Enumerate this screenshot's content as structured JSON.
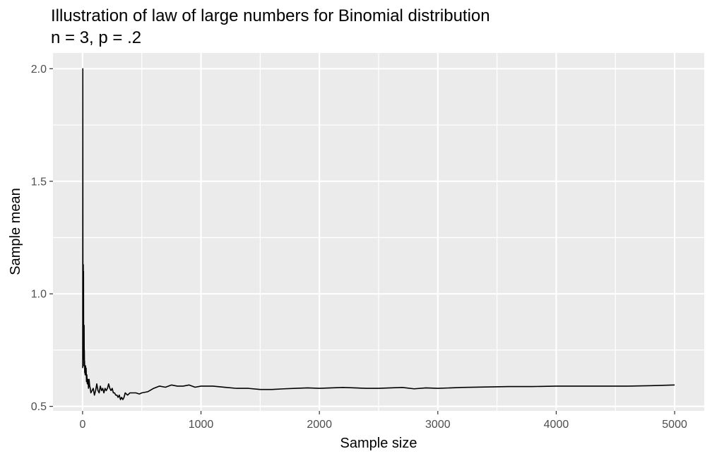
{
  "chart_data": {
    "type": "line",
    "title": "Illustration of law of large numbers for Binomial distribution",
    "subtitle": "n = 3, p = .2",
    "xlabel": "Sample size",
    "ylabel": "Sample mean",
    "xlim": [
      -250,
      5250
    ],
    "ylim": [
      0.48,
      2.07
    ],
    "x_ticks": [
      0,
      1000,
      2000,
      3000,
      4000,
      5000
    ],
    "x_tick_labels": [
      "0",
      "1000",
      "2000",
      "3000",
      "4000",
      "5000"
    ],
    "y_ticks": [
      0.5,
      1.0,
      1.5,
      2.0
    ],
    "y_tick_labels": [
      "0.5",
      "1.0",
      "1.5",
      "2.0"
    ],
    "x_minor_ticks": [
      500,
      1500,
      2500,
      3500,
      4500
    ],
    "y_minor_ticks": [
      0.75,
      1.25,
      1.75
    ],
    "grid": true,
    "panel_background": "#ebebeb",
    "grid_color": "#ffffff",
    "line_color": "#000000",
    "series": [
      {
        "x": [
          1,
          2,
          3,
          4,
          5,
          6,
          7,
          8,
          9,
          10,
          11,
          12,
          13,
          14,
          15,
          16,
          17,
          18,
          20,
          22,
          25,
          28,
          30,
          33,
          36,
          40,
          45,
          50,
          55,
          60,
          65,
          70,
          80,
          90,
          100,
          110,
          120,
          130,
          140,
          150,
          160,
          170,
          180,
          190,
          200,
          210,
          220,
          230,
          240,
          250,
          260,
          270,
          280,
          290,
          300,
          310,
          320,
          330,
          340,
          350,
          360,
          380,
          400,
          420,
          450,
          480,
          500,
          550,
          600,
          650,
          700,
          750,
          800,
          850,
          900,
          950,
          1000,
          1100,
          1200,
          1300,
          1400,
          1500,
          1600,
          1700,
          1800,
          1900,
          2000,
          2100,
          2200,
          2300,
          2400,
          2500,
          2600,
          2700,
          2800,
          2900,
          3000,
          3200,
          3400,
          3600,
          3800,
          4000,
          4200,
          4400,
          4600,
          4800,
          5000
        ],
        "values": [
          0.67,
          2.0,
          1.0,
          0.75,
          0.8,
          1.13,
          0.71,
          1.1,
          0.78,
          0.72,
          0.85,
          0.68,
          0.86,
          0.72,
          0.75,
          0.69,
          0.7,
          0.65,
          0.66,
          0.64,
          0.68,
          0.64,
          0.67,
          0.61,
          0.64,
          0.6,
          0.62,
          0.58,
          0.62,
          0.59,
          0.58,
          0.56,
          0.57,
          0.58,
          0.55,
          0.57,
          0.6,
          0.57,
          0.56,
          0.59,
          0.57,
          0.58,
          0.56,
          0.58,
          0.57,
          0.58,
          0.6,
          0.58,
          0.57,
          0.58,
          0.56,
          0.56,
          0.55,
          0.55,
          0.54,
          0.55,
          0.53,
          0.54,
          0.53,
          0.54,
          0.56,
          0.55,
          0.56,
          0.56,
          0.56,
          0.555,
          0.56,
          0.565,
          0.58,
          0.59,
          0.585,
          0.595,
          0.59,
          0.59,
          0.595,
          0.585,
          0.59,
          0.59,
          0.585,
          0.58,
          0.58,
          0.575,
          0.575,
          0.578,
          0.58,
          0.582,
          0.58,
          0.582,
          0.584,
          0.582,
          0.58,
          0.58,
          0.582,
          0.584,
          0.578,
          0.582,
          0.58,
          0.584,
          0.586,
          0.588,
          0.588,
          0.59,
          0.59,
          0.59,
          0.59,
          0.592,
          0.595
        ]
      }
    ]
  }
}
